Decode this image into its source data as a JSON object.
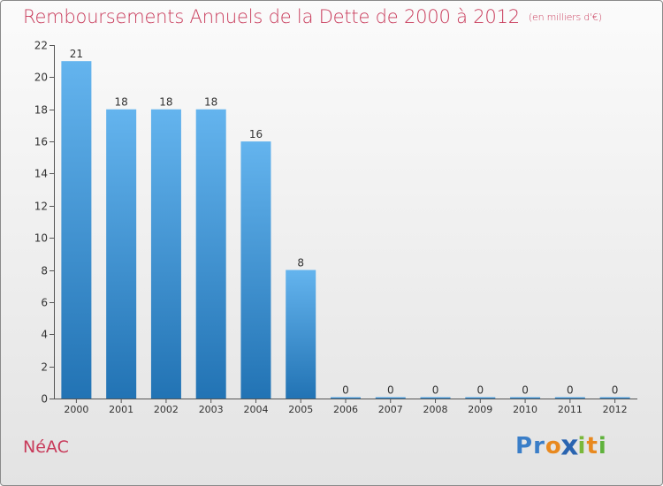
{
  "title": "Remboursements Annuels de la Dette de 2000 à 2012",
  "unit_note": "(en milliers d'€)",
  "commune": "NéAC",
  "brand": "Proxiti",
  "colors": {
    "title": "#c83a5a",
    "bar_top": "#64b4ee",
    "bar_bottom": "#2273b4"
  },
  "chart_data": {
    "type": "bar",
    "title": "Remboursements Annuels de la Dette de 2000 à 2012",
    "subtitle": "(en milliers d'€)",
    "xlabel": "",
    "ylabel": "",
    "categories": [
      "2000",
      "2001",
      "2002",
      "2003",
      "2004",
      "2005",
      "2006",
      "2007",
      "2008",
      "2009",
      "2010",
      "2011",
      "2012"
    ],
    "values": [
      21,
      18,
      18,
      18,
      16,
      8,
      0,
      0,
      0,
      0,
      0,
      0,
      0
    ],
    "data_labels": [
      "21",
      "18",
      "18",
      "18",
      "16",
      "8",
      "0",
      "0",
      "0",
      "0",
      "0",
      "0",
      "0"
    ],
    "ylim": [
      0,
      22
    ],
    "yticks": [
      0,
      2,
      4,
      6,
      8,
      10,
      12,
      14,
      16,
      18,
      20,
      22
    ],
    "grid": false,
    "legend": "none"
  }
}
